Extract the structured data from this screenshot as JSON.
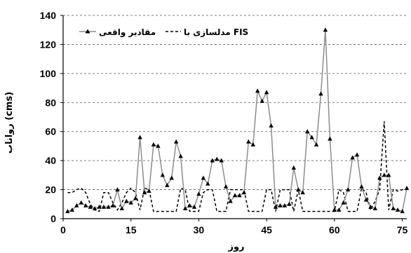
{
  "chart_data": {
    "type": "line",
    "title": "",
    "xlabel": "روز",
    "ylabel": "رواناب (cms)",
    "xlim": [
      0,
      76
    ],
    "ylim": [
      0,
      140
    ],
    "xticks": [
      0,
      15,
      30,
      45,
      60,
      75
    ],
    "yticks": [
      0,
      20,
      40,
      60,
      80,
      100,
      120,
      140
    ],
    "grid": "horizontal dashed",
    "legend_position": "top",
    "series": [
      {
        "name": "مقادیر واقعی",
        "style": "solid-gray-triangle-markers",
        "color": "#8c8c8c",
        "marker_color": "#000000",
        "x": [
          1,
          2,
          3,
          4,
          5,
          6,
          7,
          8,
          9,
          10,
          11,
          12,
          13,
          14,
          15,
          16,
          17,
          18,
          19,
          20,
          21,
          22,
          23,
          24,
          25,
          26,
          27,
          28,
          29,
          30,
          31,
          32,
          33,
          34,
          35,
          36,
          37,
          38,
          39,
          40,
          41,
          42,
          43,
          44,
          45,
          46,
          47,
          48,
          49,
          50,
          51,
          52,
          53,
          54,
          55,
          56,
          57,
          58,
          59,
          60,
          61,
          62,
          63,
          64,
          65,
          66,
          67,
          68,
          69,
          70,
          71,
          72,
          73,
          74,
          75,
          76
        ],
        "y": [
          5,
          6,
          9,
          11,
          9,
          8,
          7,
          8,
          8,
          8,
          9,
          20,
          7,
          12,
          11,
          14,
          56,
          18,
          19,
          51,
          50,
          30,
          23,
          28,
          53,
          43,
          7,
          9,
          8,
          17,
          28,
          24,
          40,
          41,
          40,
          22,
          12,
          16,
          16,
          18,
          53,
          51,
          88,
          81,
          87,
          64,
          8,
          9,
          9,
          10,
          35,
          20,
          18,
          60,
          56,
          51,
          86,
          130,
          55,
          6,
          6,
          11,
          20,
          42,
          44,
          22,
          13,
          8,
          7,
          28,
          30,
          30,
          7,
          6,
          5,
          21
        ]
      },
      {
        "name": "مدلسازی با FIS",
        "style": "dashed-black",
        "color": "#000000",
        "x": [
          1,
          2,
          3,
          4,
          5,
          6,
          7,
          8,
          9,
          10,
          11,
          12,
          13,
          14,
          15,
          16,
          17,
          18,
          19,
          20,
          21,
          22,
          23,
          24,
          25,
          26,
          27,
          28,
          29,
          30,
          31,
          32,
          33,
          34,
          35,
          36,
          37,
          38,
          39,
          40,
          41,
          42,
          43,
          44,
          45,
          46,
          47,
          48,
          49,
          50,
          51,
          52,
          53,
          54,
          55,
          56,
          57,
          58,
          59,
          60,
          61,
          62,
          63,
          64,
          65,
          66,
          67,
          68,
          69,
          70,
          71,
          72,
          73,
          74,
          75,
          76
        ],
        "y": [
          18,
          18,
          20,
          21,
          18,
          10,
          6,
          5,
          18,
          18,
          11,
          6,
          11,
          18,
          21,
          18,
          6,
          21,
          20,
          5,
          5,
          5,
          5,
          5,
          5,
          21,
          20,
          5,
          5,
          5,
          18,
          20,
          20,
          5,
          5,
          5,
          20,
          20,
          20,
          20,
          5,
          5,
          5,
          5,
          20,
          20,
          5,
          20,
          20,
          20,
          5,
          20,
          5,
          5,
          5,
          5,
          5,
          5,
          5,
          5,
          20,
          18,
          5,
          5,
          5,
          21,
          18,
          6,
          12,
          20,
          67,
          6,
          20,
          19,
          20,
          20
        ]
      }
    ]
  }
}
